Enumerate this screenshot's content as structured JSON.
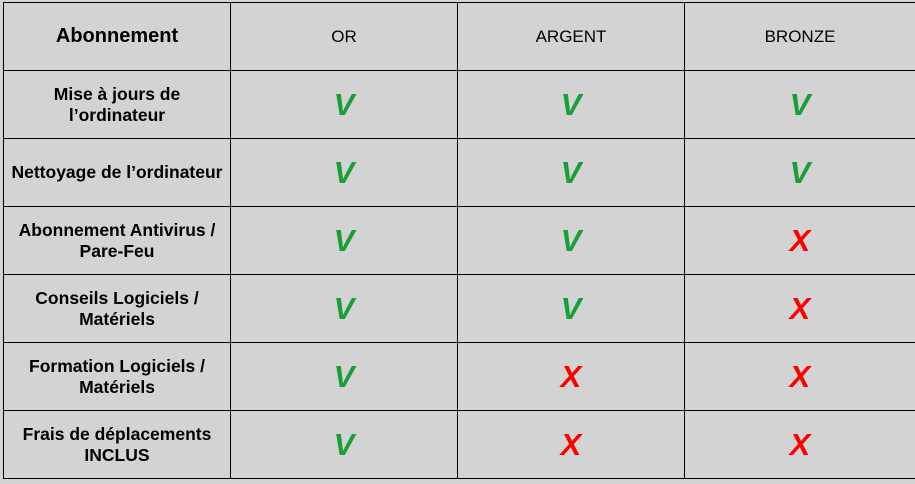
{
  "table": {
    "corner_label": "Abonnement",
    "plans": [
      "OR",
      "ARGENT",
      "BRONZE"
    ],
    "rows": [
      {
        "feature": "Mise à jours de l’ordinateur",
        "marks": [
          "V",
          "V",
          "V"
        ]
      },
      {
        "feature": "Nettoyage de l’ordinateur",
        "marks": [
          "V",
          "V",
          "V"
        ]
      },
      {
        "feature": "Abonnement Antivirus / Pare-Feu",
        "marks": [
          "V",
          "V",
          "X"
        ]
      },
      {
        "feature": "Conseils Logiciels / Matériels",
        "marks": [
          "V",
          "V",
          "X"
        ]
      },
      {
        "feature": "Formation Logiciels / Matériels",
        "marks": [
          "V",
          "X",
          "X"
        ]
      },
      {
        "feature": "Frais de déplacements INCLUS",
        "marks": [
          "V",
          "X",
          "X"
        ]
      }
    ]
  },
  "colors": {
    "included": "#18a038",
    "excluded": "#ff0000",
    "background": "#d3d3d3"
  }
}
